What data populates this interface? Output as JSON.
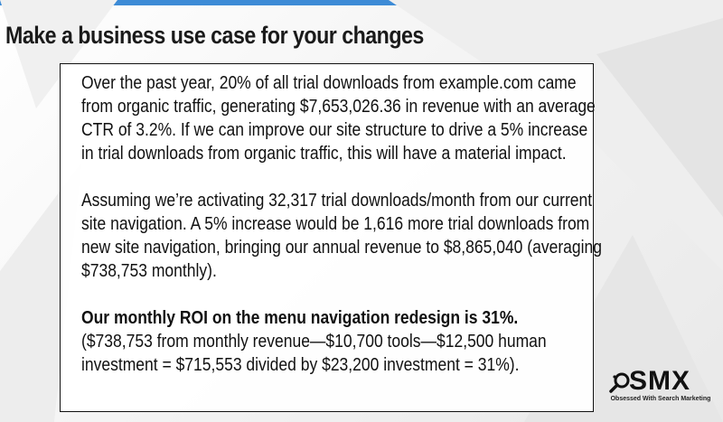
{
  "slide": {
    "title": "Make a business use case for your changes",
    "paragraph1": [
      "Over the past year, 20% of all trial downloads from example.com came",
      "from organic traffic, generating $7,653,026.36 in revenue with an average",
      "CTR of 3.2%.  If we can improve our site structure to drive a 5% increase",
      "in trial downloads from organic traffic, this will have a material impact."
    ],
    "paragraph2": [
      "Assuming we’re activating 32,317 trial downloads/month from our current",
      "site navigation. A 5% increase would be 1,616 more trial downloads from",
      "new site navigation, bringing our annual revenue to $8,865,040 (averaging",
      "$738,753 monthly)."
    ],
    "roi_heading": "Our monthly ROI on the menu navigation redesign is 31%.",
    "paragraph3": [
      "($738,753 from monthly revenue—$10,700 tools—$12,500 human",
      "investment = $715,553 divided by $23,200 investment = 31%)."
    ]
  },
  "logo": {
    "brand": "SMX",
    "tagline": "Obsessed With Search Marketing",
    "icon": "magnifier-icon"
  },
  "colors": {
    "top_bar": "#3d8bd6",
    "text": "#111111"
  }
}
